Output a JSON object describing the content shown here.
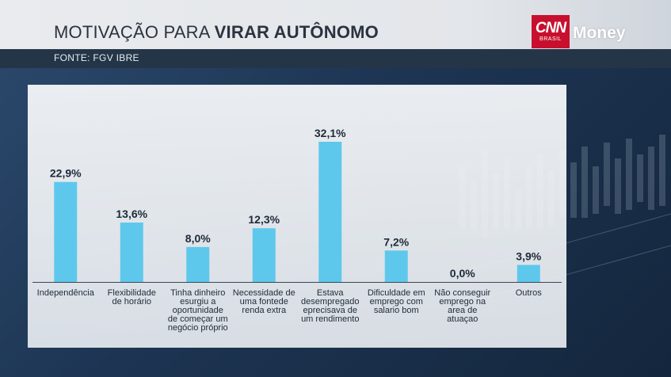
{
  "header": {
    "title_light": "MOTIVAÇÃO PARA ",
    "title_bold": "VIRAR AUTÔNOMO",
    "source": "FONTE: FGV IBRE"
  },
  "brand": {
    "logo_text": "CNN",
    "logo_subtext": "BRASIL",
    "channel": "Money",
    "logo_color": "#c8102e"
  },
  "colors": {
    "bar": "#5ec8ec",
    "axis": "#3a4656",
    "text": "#1f2a38"
  },
  "chart_data": {
    "type": "bar",
    "title": "MOTIVAÇÃO PARA VIRAR AUTÔNOMO",
    "categories": [
      [
        "Independência"
      ],
      [
        "Flexibilidade",
        "de horário"
      ],
      [
        "Tinha dinheiro",
        "esurgiu a",
        "oportunidade",
        "de começar um",
        "negócio próprio"
      ],
      [
        "Necessidade de",
        "uma fontede",
        "renda extra"
      ],
      [
        "Estava",
        "desempregado",
        "eprecisava de",
        "um rendimento"
      ],
      [
        "Dificuldade em",
        "emprego com",
        "salario bom"
      ],
      [
        "Não conseguir",
        "emprego na",
        "area de",
        "atuaçao"
      ],
      [
        "Outros"
      ]
    ],
    "values": [
      22.9,
      13.6,
      8.0,
      12.3,
      32.1,
      7.2,
      0.0,
      3.9
    ],
    "value_labels": [
      "22,9%",
      "13,6%",
      "8,0%",
      "12,3%",
      "32,1%",
      "7,2%",
      "0,0%",
      "3,9%"
    ],
    "ylim": [
      0,
      32.1
    ],
    "grid": false,
    "legend": "none"
  }
}
